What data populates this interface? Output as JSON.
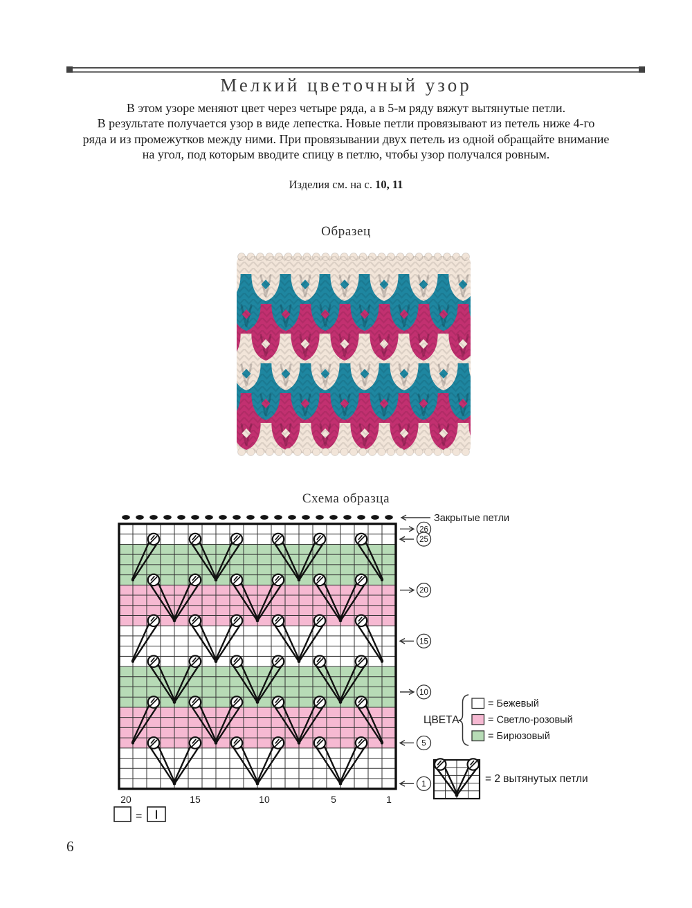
{
  "page": {
    "number": "6"
  },
  "header": {
    "title": "Мелкий цветочный узор",
    "intro_lines": [
      "В этом узоре меняют цвет через четыре ряда, а в 5-м ряду вяжут вытянутые петли.",
      "В результате получается узор в виде лепестка. Новые петли провязывают из петель ниже 4-го",
      "ряда и из промежутков между ними. При провязывании двух петель из одной обращайте внимание",
      "на угол, под которым вводите спицу в петлю, чтобы узор получался ровным."
    ],
    "see_also_prefix": "Изделия см. на с.",
    "see_also_pages": "10, 11"
  },
  "sample": {
    "heading": "Образец"
  },
  "chart": {
    "heading": "Схема образца",
    "bound_off_label": "Закрытые петли",
    "colors_label": "ЦВЕТА",
    "knit_legend_equals": "=",
    "symbol_legend_label": "= 2 вытянутых петли",
    "color_legend": [
      {
        "color": "beige",
        "label": "= Бежевый"
      },
      {
        "color": "pink",
        "label": "= Светло-розовый"
      },
      {
        "color": "green",
        "label": "= Бирюзовый"
      }
    ]
  },
  "chart_data": {
    "type": "table",
    "subtype": "knitting-chart",
    "title": "Схема образца",
    "columns": 20,
    "rows": 26,
    "column_ticks": [
      20,
      15,
      10,
      5,
      1
    ],
    "row_markers": [
      {
        "row": 26,
        "arrow": "right"
      },
      {
        "row": 25,
        "arrow": "left"
      },
      {
        "row": 20,
        "arrow": "right"
      },
      {
        "row": 15,
        "arrow": "left"
      },
      {
        "row": 10,
        "arrow": "right"
      },
      {
        "row": 5,
        "arrow": "left"
      },
      {
        "row": 1,
        "arrow": "left"
      }
    ],
    "cell_colors": {
      "beige": "#ffffff",
      "pink": "#f6b9d2",
      "green": "#b7dbb6"
    },
    "color_bands": [
      {
        "from_row": 1,
        "to_row": 4,
        "color": "beige"
      },
      {
        "from_row": 5,
        "to_row": 8,
        "color": "pink"
      },
      {
        "from_row": 9,
        "to_row": 12,
        "color": "green"
      },
      {
        "from_row": 13,
        "to_row": 16,
        "color": "beige"
      },
      {
        "from_row": 17,
        "to_row": 20,
        "color": "pink"
      },
      {
        "from_row": 21,
        "to_row": 24,
        "color": "green"
      },
      {
        "from_row": 25,
        "to_row": 26,
        "color": "beige"
      }
    ],
    "bound_off_stitch_count": 20,
    "elongated_stitch_sets": [
      {
        "circle_row": 25,
        "rows_down": 4,
        "vee_pairs": [
          [
            15,
            12
          ],
          [
            9,
            6
          ]
        ],
        "left_edge_col": 18,
        "right_edge_col": 3
      },
      {
        "circle_row": 21,
        "rows_down": 4,
        "vee_pairs": [
          [
            18,
            15
          ],
          [
            12,
            9
          ],
          [
            6,
            3
          ]
        ]
      },
      {
        "circle_row": 17,
        "rows_down": 4,
        "vee_pairs": [
          [
            15,
            12
          ],
          [
            9,
            6
          ]
        ],
        "left_edge_col": 18,
        "right_edge_col": 3
      },
      {
        "circle_row": 13,
        "rows_down": 4,
        "vee_pairs": [
          [
            18,
            15
          ],
          [
            12,
            9
          ],
          [
            6,
            3
          ]
        ]
      },
      {
        "circle_row": 9,
        "rows_down": 4,
        "vee_pairs": [
          [
            15,
            12
          ],
          [
            9,
            6
          ]
        ],
        "left_edge_col": 18,
        "right_edge_col": 3
      },
      {
        "circle_row": 5,
        "rows_down": 4,
        "vee_pairs": [
          [
            18,
            15
          ],
          [
            12,
            9
          ],
          [
            6,
            3
          ]
        ]
      }
    ]
  },
  "swatch_data": {
    "colors": {
      "beige": "#f2e5d9",
      "teal": "#1e86a0",
      "magenta": "#c23070"
    },
    "bands": [
      {
        "color": "teal",
        "petal_color": "beige"
      },
      {
        "color": "magenta",
        "petal_color": "teal"
      },
      {
        "color": "beige",
        "petal_color": "magenta"
      },
      {
        "color": "teal",
        "petal_color": "beige"
      },
      {
        "color": "magenta",
        "petal_color": "teal"
      },
      {
        "color": "beige",
        "petal_color": "magenta"
      }
    ]
  }
}
